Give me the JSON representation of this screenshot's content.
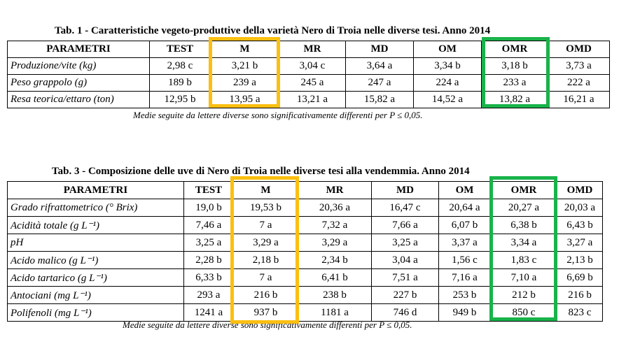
{
  "tables": [
    {
      "title": "Tab. 1 - Caratteristiche vegeto-produttive della varietà Nero di Troia nelle diverse tesi. Anno 2014",
      "header": [
        "PARAMETRI",
        "TEST",
        "M",
        "MR",
        "MD",
        "OM",
        "OMR",
        "OMD"
      ],
      "rows": [
        [
          "Produzione/vite (kg)",
          "2,98 c",
          "3,21 b",
          "3,04 c",
          "3,64 a",
          "3,34 b",
          "3,18 b",
          "3,73 a"
        ],
        [
          "Peso grappolo (g)",
          "189 b",
          "239 a",
          "245 a",
          "247 a",
          "224 a",
          "233 a",
          "222 a"
        ],
        [
          "Resa teorica/ettaro (ton)",
          "12,95 b",
          "13,95 a",
          "13,21 a",
          "15,82 a",
          "14,52 a",
          "13,82 a",
          "16,21 a"
        ]
      ],
      "note": "Medie seguite da lettere diverse sono significativamente differenti per P ≤ 0,05."
    },
    {
      "title": "Tab. 3 - Composizione delle uve di Nero di Troia nelle diverse tesi alla vendemmia. Anno 2014",
      "header": [
        "PARAMETRI",
        "TEST",
        "M",
        "MR",
        "MD",
        "OM",
        "OMR",
        "OMD"
      ],
      "rows": [
        [
          "Grado rifrattometrico  (° Brix)",
          "19,0 b",
          "19,53 b",
          "20,36 a",
          "16,47 c",
          "20,64 a",
          "20,27 a",
          "20,03 a"
        ],
        [
          "Acidità totale (g L⁻¹)",
          "7,46 a",
          "7 a",
          "7,32 a",
          "7,66 a",
          "6,07 b",
          "6,38 b",
          "6,43 b"
        ],
        [
          "pH",
          "3,25 a",
          "3,29 a",
          "3,29 a",
          "3,25 a",
          "3,37 a",
          "3,34 a",
          "3,27 a"
        ],
        [
          "Acido malico (g L⁻¹)",
          "2,28 b",
          "2,18 b",
          "2,34 b",
          "3,04 a",
          "1,56 c",
          "1,83 c",
          "2,13 b"
        ],
        [
          "Acido tartarico (g L⁻¹)",
          "6,33 b",
          "7 a",
          "6,41 b",
          "7,51 a",
          "7,16 a",
          "7,10 a",
          "6,69 b"
        ],
        [
          "Antociani (mg L⁻¹)",
          "293 a",
          "216 b",
          "238 b",
          "227 b",
          "253 b",
          "212 b",
          "216 b"
        ],
        [
          "Polifenoli (mg L⁻¹)",
          "1241 a",
          "937 b",
          "1181 a",
          "746 d",
          "949 b",
          "850 c",
          "823 c"
        ]
      ],
      "note": "Medie seguite da lettere diverse sono significativamente differenti per P ≤ 0,05."
    }
  ]
}
